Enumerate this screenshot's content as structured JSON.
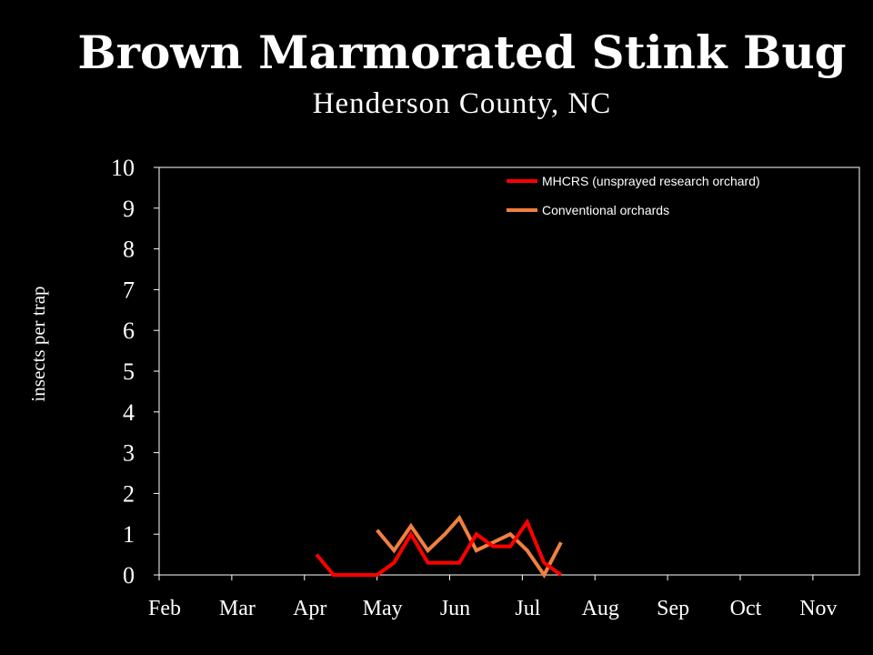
{
  "chart_data": {
    "type": "line",
    "title": "Brown Marmorated Stink Bug",
    "subtitle": "Henderson County, NC",
    "ylabel": "insects per trap",
    "xlabel": "",
    "ylim": [
      0,
      10
    ],
    "yticks": [
      "0",
      "1",
      "2",
      "3",
      "4",
      "5",
      "6",
      "7",
      "8",
      "9",
      "10"
    ],
    "categories": [
      "Feb",
      "Mar",
      "Apr",
      "May",
      "Jun",
      "Jul",
      "Aug",
      "Sep",
      "Oct",
      "Nov"
    ],
    "legend_position": "top-right",
    "grid": false,
    "series": [
      {
        "name": "MHCRS (unsprayed research orchard)",
        "color": "#ff0000",
        "x": [
          "Apr 6",
          "Apr 13",
          "Apr 20",
          "Apr 27",
          "May 1",
          "May 8",
          "May 15",
          "May 22",
          "May 29",
          "Jun 5",
          "Jun 12",
          "Jun 19",
          "Jun 26",
          "Jul 3",
          "Jul 10",
          "Jul 17"
        ],
        "values": [
          0.5,
          0.0,
          0.0,
          0.0,
          0.0,
          0.3,
          1.0,
          0.3,
          0.3,
          0.3,
          1.0,
          0.7,
          0.7,
          1.3,
          0.3,
          0.0
        ]
      },
      {
        "name": "Conventional orchards",
        "color": "#f08040",
        "x": [
          "May 1",
          "May 8",
          "May 15",
          "May 22",
          "May 29",
          "Jun 5",
          "Jun 12",
          "Jun 19",
          "Jun 26",
          "Jul 3",
          "Jul 10",
          "Jul 17"
        ],
        "values": [
          1.1,
          0.6,
          1.2,
          0.6,
          1.0,
          1.4,
          0.6,
          0.8,
          1.0,
          0.6,
          0.0,
          0.8
        ]
      }
    ]
  }
}
